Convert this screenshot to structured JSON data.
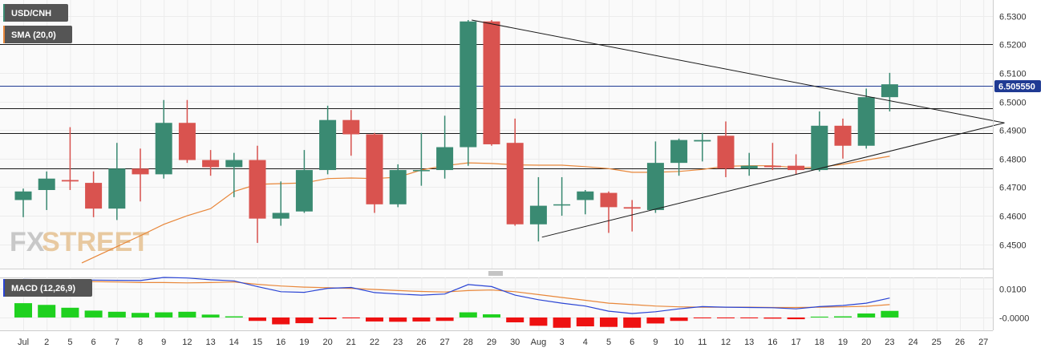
{
  "chart_data": [
    {
      "type": "candlestick",
      "symbol": "USD/CNH",
      "indicator": "SMA (20,0)",
      "colors": {
        "up": "#3a8a72",
        "down": "#d9534f",
        "sma": "#e8873a",
        "trendline": "#1a1a1a",
        "hline": "#1a1a1a",
        "current_line": "#1f3a93",
        "badge": "#555555",
        "price_badge": "#1f3a93"
      },
      "ylim": [
        6.4415,
        6.5355
      ],
      "y_ticks": [
        "6.5300",
        "6.5200",
        "6.5100",
        "6.5000",
        "6.4900",
        "6.4800",
        "6.4700",
        "6.4600",
        "6.4500"
      ],
      "current_price": "6.505550",
      "x_labels": [
        "Jul",
        "2",
        "5",
        "6",
        "7",
        "8",
        "9",
        "12",
        "13",
        "14",
        "15",
        "16",
        "19",
        "20",
        "21",
        "22",
        "23",
        "26",
        "27",
        "28",
        "29",
        "30",
        "Aug",
        "3",
        "4",
        "5",
        "6",
        "9",
        "10",
        "11",
        "12",
        "13",
        "16",
        "17",
        "18",
        "19",
        "20",
        "23",
        "24",
        "25",
        "26",
        "27"
      ],
      "horizontal_levels": [
        6.52,
        6.4975,
        6.4888,
        6.4765
      ],
      "trendlines": [
        {
          "from": [
            19.15,
            6.5285
          ],
          "to": [
            41.9,
            6.4925
          ]
        },
        {
          "from": [
            22.15,
            6.4525
          ],
          "to": [
            41.9,
            6.4925
          ]
        }
      ],
      "candles": [
        {
          "x": 0,
          "open": 6.4655,
          "high": 6.4695,
          "low": 6.4595,
          "close": 6.4685
        },
        {
          "x": 1,
          "open": 6.469,
          "high": 6.4755,
          "low": 6.462,
          "close": 6.473
        },
        {
          "x": 2,
          "open": 6.4725,
          "high": 6.491,
          "low": 6.469,
          "close": 6.472
        },
        {
          "x": 3,
          "open": 6.4715,
          "high": 6.4755,
          "low": 6.4595,
          "close": 6.4625
        },
        {
          "x": 4,
          "open": 6.4625,
          "high": 6.4855,
          "low": 6.4585,
          "close": 6.4765
        },
        {
          "x": 5,
          "open": 6.4765,
          "high": 6.4835,
          "low": 6.465,
          "close": 6.4745
        },
        {
          "x": 6,
          "open": 6.4745,
          "high": 6.5005,
          "low": 6.473,
          "close": 6.4925
        },
        {
          "x": 7,
          "open": 6.4925,
          "high": 6.5005,
          "low": 6.4785,
          "close": 6.4795
        },
        {
          "x": 8,
          "open": 6.4795,
          "high": 6.483,
          "low": 6.474,
          "close": 6.477
        },
        {
          "x": 9,
          "open": 6.477,
          "high": 6.482,
          "low": 6.4665,
          "close": 6.4795
        },
        {
          "x": 10,
          "open": 6.4795,
          "high": 6.4845,
          "low": 6.4505,
          "close": 6.459
        },
        {
          "x": 11,
          "open": 6.459,
          "high": 6.472,
          "low": 6.4565,
          "close": 6.461
        },
        {
          "x": 12,
          "open": 6.4615,
          "high": 6.483,
          "low": 6.461,
          "close": 6.476
        },
        {
          "x": 13,
          "open": 6.476,
          "high": 6.4985,
          "low": 6.4745,
          "close": 6.4935
        },
        {
          "x": 14,
          "open": 6.4935,
          "high": 6.497,
          "low": 6.481,
          "close": 6.4885
        },
        {
          "x": 15,
          "open": 6.4885,
          "high": 6.489,
          "low": 6.461,
          "close": 6.464
        },
        {
          "x": 16,
          "open": 6.464,
          "high": 6.478,
          "low": 6.463,
          "close": 6.476
        },
        {
          "x": 17,
          "open": 6.476,
          "high": 6.489,
          "low": 6.4705,
          "close": 6.476
        },
        {
          "x": 18,
          "open": 6.476,
          "high": 6.495,
          "low": 6.473,
          "close": 6.484
        },
        {
          "x": 19,
          "open": 6.484,
          "high": 6.5285,
          "low": 6.4775,
          "close": 6.528
        },
        {
          "x": 20,
          "open": 6.528,
          "high": 6.5285,
          "low": 6.4845,
          "close": 6.485
        },
        {
          "x": 21,
          "open": 6.4855,
          "high": 6.494,
          "low": 6.4565,
          "close": 6.457
        },
        {
          "x": 22,
          "open": 6.457,
          "high": 6.4735,
          "low": 6.451,
          "close": 6.4635
        },
        {
          "x": 23,
          "open": 6.464,
          "high": 6.4735,
          "low": 6.46,
          "close": 6.464
        },
        {
          "x": 24,
          "open": 6.4655,
          "high": 6.469,
          "low": 6.4605,
          "close": 6.4685
        },
        {
          "x": 25,
          "open": 6.468,
          "high": 6.4685,
          "low": 6.454,
          "close": 6.463
        },
        {
          "x": 26,
          "open": 6.463,
          "high": 6.4655,
          "low": 6.4545,
          "close": 6.4625
        },
        {
          "x": 27,
          "open": 6.462,
          "high": 6.486,
          "low": 6.461,
          "close": 6.4785
        },
        {
          "x": 28,
          "open": 6.4785,
          "high": 6.487,
          "low": 6.474,
          "close": 6.4865
        },
        {
          "x": 29,
          "open": 6.486,
          "high": 6.489,
          "low": 6.479,
          "close": 6.4865
        },
        {
          "x": 30,
          "open": 6.488,
          "high": 6.493,
          "low": 6.4735,
          "close": 6.4765
        },
        {
          "x": 31,
          "open": 6.4765,
          "high": 6.482,
          "low": 6.474,
          "close": 6.4775
        },
        {
          "x": 32,
          "open": 6.4775,
          "high": 6.4855,
          "low": 6.476,
          "close": 6.477
        },
        {
          "x": 33,
          "open": 6.4775,
          "high": 6.4815,
          "low": 6.4745,
          "close": 6.476
        },
        {
          "x": 34,
          "open": 6.476,
          "high": 6.4965,
          "low": 6.4755,
          "close": 6.4915
        },
        {
          "x": 35,
          "open": 6.4915,
          "high": 6.494,
          "low": 6.48,
          "close": 6.4845
        },
        {
          "x": 36,
          "open": 6.4845,
          "high": 6.5045,
          "low": 6.4835,
          "close": 6.5015
        },
        {
          "x": 37,
          "open": 6.5015,
          "high": 6.51,
          "low": 6.4965,
          "close": 6.506
        }
      ],
      "sma": [
        {
          "x": 2.5,
          "y": 6.4435
        },
        {
          "x": 5,
          "y": 6.453
        },
        {
          "x": 6,
          "y": 6.457
        },
        {
          "x": 7,
          "y": 6.46
        },
        {
          "x": 8,
          "y": 6.4625
        },
        {
          "x": 9,
          "y": 6.4685
        },
        {
          "x": 10,
          "y": 6.471
        },
        {
          "x": 12,
          "y": 6.4715
        },
        {
          "x": 13,
          "y": 6.473
        },
        {
          "x": 14,
          "y": 6.4732
        },
        {
          "x": 15,
          "y": 6.473
        },
        {
          "x": 16,
          "y": 6.4735
        },
        {
          "x": 17,
          "y": 6.476
        },
        {
          "x": 18,
          "y": 6.4775
        },
        {
          "x": 19,
          "y": 6.4785
        },
        {
          "x": 20,
          "y": 6.4783
        },
        {
          "x": 21,
          "y": 6.4778
        },
        {
          "x": 22,
          "y": 6.4777
        },
        {
          "x": 23,
          "y": 6.4777
        },
        {
          "x": 24,
          "y": 6.4772
        },
        {
          "x": 25,
          "y": 6.4765
        },
        {
          "x": 26,
          "y": 6.4752
        },
        {
          "x": 27,
          "y": 6.4752
        },
        {
          "x": 28,
          "y": 6.4755
        },
        {
          "x": 29,
          "y": 6.4762
        },
        {
          "x": 30,
          "y": 6.4773
        },
        {
          "x": 31,
          "y": 6.4775
        },
        {
          "x": 32,
          "y": 6.4775
        },
        {
          "x": 33,
          "y": 6.4768
        },
        {
          "x": 34,
          "y": 6.477
        },
        {
          "x": 35,
          "y": 6.478
        },
        {
          "x": 36,
          "y": 6.4795
        },
        {
          "x": 37,
          "y": 6.4808
        }
      ]
    },
    {
      "type": "macd",
      "indicator": "MACD (12,26,9)",
      "colors": {
        "macd": "#2a44d4",
        "signal": "#e8873a",
        "hist_up": "#1fd11f",
        "hist_down": "#ee1111"
      },
      "ylim": [
        -0.0045,
        0.014
      ],
      "y_ticks": [
        {
          "value": 0.01,
          "label": "0.0100"
        },
        {
          "value": 0.0,
          "label": "-0.0000"
        }
      ],
      "histogram": [
        {
          "x": 0,
          "value": 0.005
        },
        {
          "x": 1,
          "value": 0.0044
        },
        {
          "x": 2,
          "value": 0.0034
        },
        {
          "x": 3,
          "value": 0.0024
        },
        {
          "x": 4,
          "value": 0.002
        },
        {
          "x": 5,
          "value": 0.0016
        },
        {
          "x": 6,
          "value": 0.0018
        },
        {
          "x": 7,
          "value": 0.002
        },
        {
          "x": 8,
          "value": 0.001
        },
        {
          "x": 9,
          "value": 0.0004
        },
        {
          "x": 10,
          "value": -0.0012
        },
        {
          "x": 11,
          "value": -0.0024
        },
        {
          "x": 12,
          "value": -0.002
        },
        {
          "x": 13,
          "value": -0.0006
        },
        {
          "x": 14,
          "value": -0.0003
        },
        {
          "x": 15,
          "value": -0.0014
        },
        {
          "x": 16,
          "value": -0.0015
        },
        {
          "x": 17,
          "value": -0.0014
        },
        {
          "x": 18,
          "value": -0.0012
        },
        {
          "x": 19,
          "value": 0.0018
        },
        {
          "x": 20,
          "value": 0.0011
        },
        {
          "x": 21,
          "value": -0.0017
        },
        {
          "x": 22,
          "value": -0.0029
        },
        {
          "x": 23,
          "value": -0.0036
        },
        {
          "x": 24,
          "value": -0.0031
        },
        {
          "x": 25,
          "value": -0.0033
        },
        {
          "x": 26,
          "value": -0.0036
        },
        {
          "x": 27,
          "value": -0.0021
        },
        {
          "x": 28,
          "value": -0.0012
        },
        {
          "x": 29,
          "value": -0.0003
        },
        {
          "x": 30,
          "value": -0.0003
        },
        {
          "x": 31,
          "value": -0.0003
        },
        {
          "x": 32,
          "value": -0.0004
        },
        {
          "x": 33,
          "value": -0.0006
        },
        {
          "x": 34,
          "value": 0.0003
        },
        {
          "x": 35,
          "value": 0.0004
        },
        {
          "x": 36,
          "value": 0.0014
        },
        {
          "x": 37,
          "value": 0.0023
        }
      ],
      "macd_line": [
        {
          "x": 0,
          "y": 0.0133
        },
        {
          "x": 4,
          "y": 0.013
        },
        {
          "x": 5,
          "y": 0.0129
        },
        {
          "x": 6,
          "y": 0.014
        },
        {
          "x": 7,
          "y": 0.0138
        },
        {
          "x": 8,
          "y": 0.0132
        },
        {
          "x": 9,
          "y": 0.0128
        },
        {
          "x": 10,
          "y": 0.0108
        },
        {
          "x": 11,
          "y": 0.009
        },
        {
          "x": 12,
          "y": 0.0088
        },
        {
          "x": 13,
          "y": 0.0102
        },
        {
          "x": 14,
          "y": 0.0105
        },
        {
          "x": 15,
          "y": 0.0087
        },
        {
          "x": 16,
          "y": 0.0082
        },
        {
          "x": 17,
          "y": 0.0078
        },
        {
          "x": 18,
          "y": 0.0082
        },
        {
          "x": 19,
          "y": 0.0115
        },
        {
          "x": 20,
          "y": 0.0108
        },
        {
          "x": 21,
          "y": 0.0078
        },
        {
          "x": 22,
          "y": 0.0062
        },
        {
          "x": 23,
          "y": 0.005
        },
        {
          "x": 24,
          "y": 0.004
        },
        {
          "x": 25,
          "y": 0.0022
        },
        {
          "x": 26,
          "y": 0.0014
        },
        {
          "x": 27,
          "y": 0.002
        },
        {
          "x": 28,
          "y": 0.003
        },
        {
          "x": 29,
          "y": 0.0038
        },
        {
          "x": 30,
          "y": 0.0036
        },
        {
          "x": 31,
          "y": 0.0035
        },
        {
          "x": 32,
          "y": 0.0034
        },
        {
          "x": 33,
          "y": 0.003
        },
        {
          "x": 34,
          "y": 0.0038
        },
        {
          "x": 35,
          "y": 0.0042
        },
        {
          "x": 36,
          "y": 0.005
        },
        {
          "x": 37,
          "y": 0.0068
        }
      ],
      "signal_line": [
        {
          "x": 0,
          "y": 0.013
        },
        {
          "x": 4,
          "y": 0.0124
        },
        {
          "x": 5,
          "y": 0.0122
        },
        {
          "x": 6,
          "y": 0.0122
        },
        {
          "x": 7,
          "y": 0.0121
        },
        {
          "x": 8,
          "y": 0.0122
        },
        {
          "x": 9,
          "y": 0.0124
        },
        {
          "x": 10,
          "y": 0.0116
        },
        {
          "x": 11,
          "y": 0.011
        },
        {
          "x": 12,
          "y": 0.0106
        },
        {
          "x": 13,
          "y": 0.0104
        },
        {
          "x": 14,
          "y": 0.0102
        },
        {
          "x": 15,
          "y": 0.0098
        },
        {
          "x": 16,
          "y": 0.0094
        },
        {
          "x": 17,
          "y": 0.0091
        },
        {
          "x": 18,
          "y": 0.0089
        },
        {
          "x": 19,
          "y": 0.0094
        },
        {
          "x": 20,
          "y": 0.0096
        },
        {
          "x": 21,
          "y": 0.009
        },
        {
          "x": 22,
          "y": 0.008
        },
        {
          "x": 23,
          "y": 0.007
        },
        {
          "x": 24,
          "y": 0.006
        },
        {
          "x": 25,
          "y": 0.005
        },
        {
          "x": 26,
          "y": 0.0045
        },
        {
          "x": 27,
          "y": 0.004
        },
        {
          "x": 28,
          "y": 0.0037
        },
        {
          "x": 29,
          "y": 0.0036
        },
        {
          "x": 30,
          "y": 0.0036
        },
        {
          "x": 31,
          "y": 0.0036
        },
        {
          "x": 32,
          "y": 0.0035
        },
        {
          "x": 33,
          "y": 0.0035
        },
        {
          "x": 34,
          "y": 0.0036
        },
        {
          "x": 35,
          "y": 0.0037
        },
        {
          "x": 36,
          "y": 0.0039
        },
        {
          "x": 37,
          "y": 0.0045
        }
      ]
    }
  ],
  "watermark": {
    "text_fx": "FX",
    "text_street": "STREET"
  }
}
